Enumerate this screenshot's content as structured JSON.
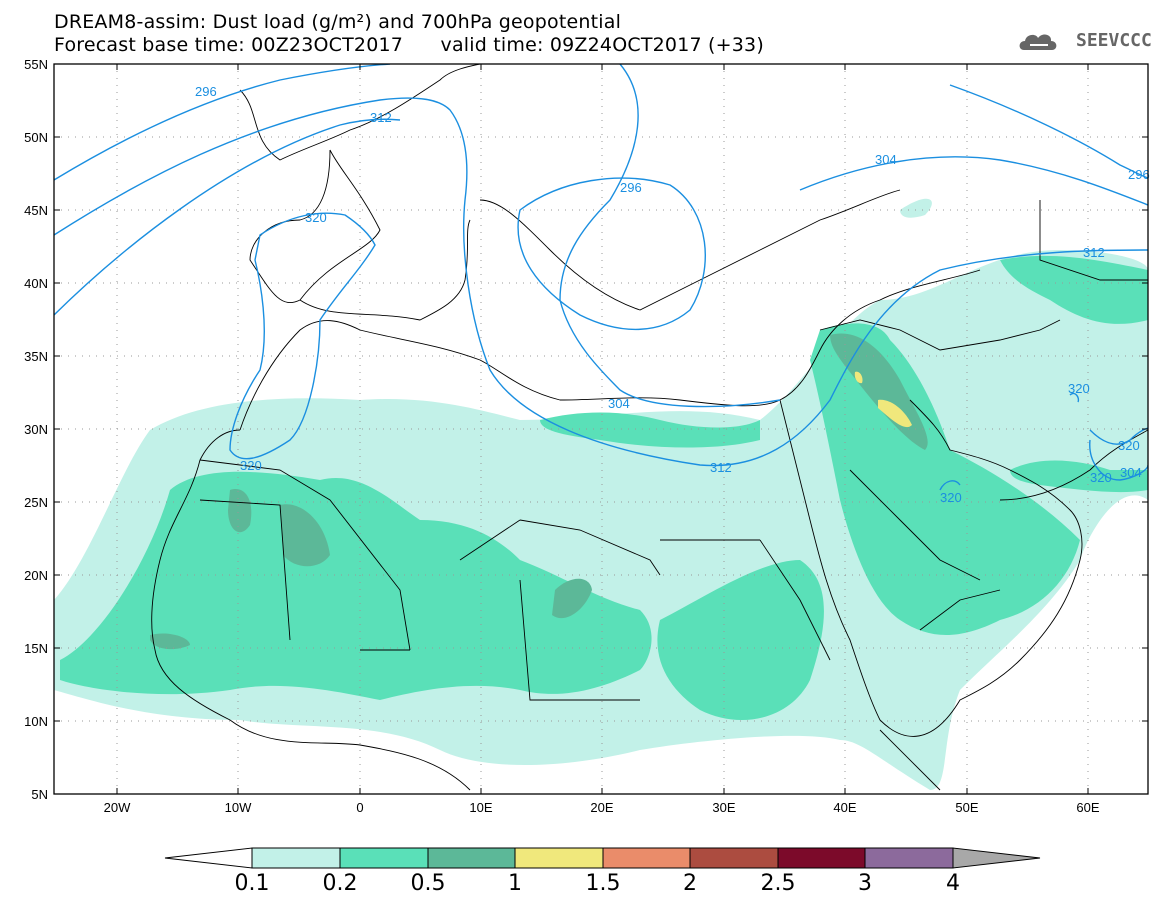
{
  "header": {
    "title_line1": "DREAM8-assim: Dust load (g/m²) and 700hPa geopotential",
    "title_line2": "Forecast base time: 00Z23OCT2017      valid time: 09Z24OCT2017 (+33)",
    "logo_text": "SEEVCCC",
    "logo_icon": "cloud-icon"
  },
  "axes": {
    "lat_labels": [
      "55N",
      "50N",
      "45N",
      "40N",
      "35N",
      "30N",
      "25N",
      "20N",
      "15N",
      "10N",
      "5N"
    ],
    "lon_labels": [
      "20W",
      "10W",
      "0",
      "10E",
      "20E",
      "30E",
      "40E",
      "50E",
      "60E"
    ]
  },
  "contour_labels": [
    "296",
    "304",
    "312",
    "320",
    "296",
    "304",
    "312",
    "320",
    "320",
    "320",
    "320",
    "320",
    "304",
    "296",
    "312"
  ],
  "colorbar": {
    "ticks": [
      "0.1",
      "0.2",
      "0.5",
      "1",
      "1.5",
      "2",
      "2.5",
      "3",
      "4"
    ],
    "colors": [
      "#c2f1e8",
      "#5ae0b8",
      "#5cb898",
      "#f0e87c",
      "#ea8c6a",
      "#ac4c40",
      "#7c0a2a",
      "#8c6a9c",
      "#a8a8a8"
    ]
  }
}
